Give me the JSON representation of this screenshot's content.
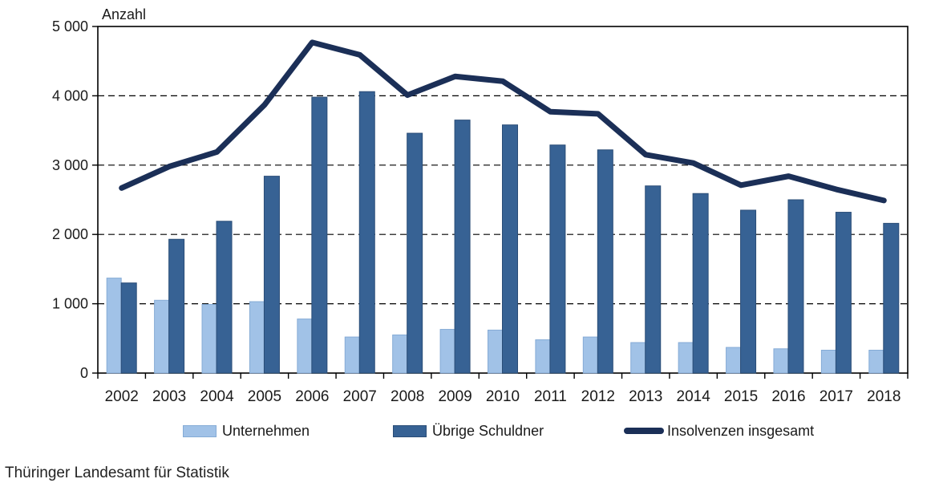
{
  "footer": {
    "source": "Thüringer Landesamt für Statistik"
  },
  "colors": {
    "unternehmen_fill": "#a1c2e7",
    "unternehmen_border": "#85abd6",
    "uebrige_fill": "#376294",
    "uebrige_border": "#2a4d77",
    "line": "#1b2f57",
    "axis": "#000000",
    "text": "#1a1a1a"
  },
  "legend": {
    "items": [
      {
        "label": "Unternehmen",
        "type": "bar",
        "color_key": "unternehmen_fill"
      },
      {
        "label": "Übrige Schuldner",
        "type": "bar",
        "color_key": "uebrige_fill"
      },
      {
        "label": "Insolvenzen insgesamt",
        "type": "line",
        "color_key": "line"
      }
    ]
  },
  "chart_data": {
    "type": "bar+line combo",
    "title": "",
    "ylabel": "Anzahl",
    "xlabel": "",
    "ylim": [
      0,
      5000
    ],
    "y_ticks": [
      0,
      1000,
      2000,
      3000,
      4000,
      5000
    ],
    "y_tick_labels": [
      "0",
      "1 000",
      "2 000",
      "3 000",
      "4 000",
      "5 000"
    ],
    "grid": "horizontal dashed gridlines at 1000-4000, solid plot border",
    "legend_position": "bottom",
    "categories": [
      "2002",
      "2003",
      "2004",
      "2005",
      "2006",
      "2007",
      "2008",
      "2009",
      "2010",
      "2011",
      "2012",
      "2013",
      "2014",
      "2015",
      "2016",
      "2017",
      "2018"
    ],
    "series": [
      {
        "name": "Unternehmen",
        "type": "bar",
        "values": [
          1370,
          1050,
          990,
          1030,
          780,
          520,
          550,
          630,
          620,
          480,
          520,
          440,
          440,
          370,
          350,
          330,
          330
        ]
      },
      {
        "name": "Übrige Schuldner",
        "type": "bar",
        "values": [
          1300,
          1930,
          2190,
          2840,
          3980,
          4060,
          3460,
          3650,
          3580,
          3290,
          3220,
          2700,
          2590,
          2350,
          2500,
          2320,
          2160
        ]
      },
      {
        "name": "Insolvenzen insgesamt",
        "type": "line",
        "values": [
          2670,
          2980,
          3190,
          3870,
          4770,
          4590,
          4010,
          4280,
          4210,
          3770,
          3740,
          3150,
          3030,
          2710,
          2840,
          2650,
          2490
        ]
      }
    ]
  }
}
